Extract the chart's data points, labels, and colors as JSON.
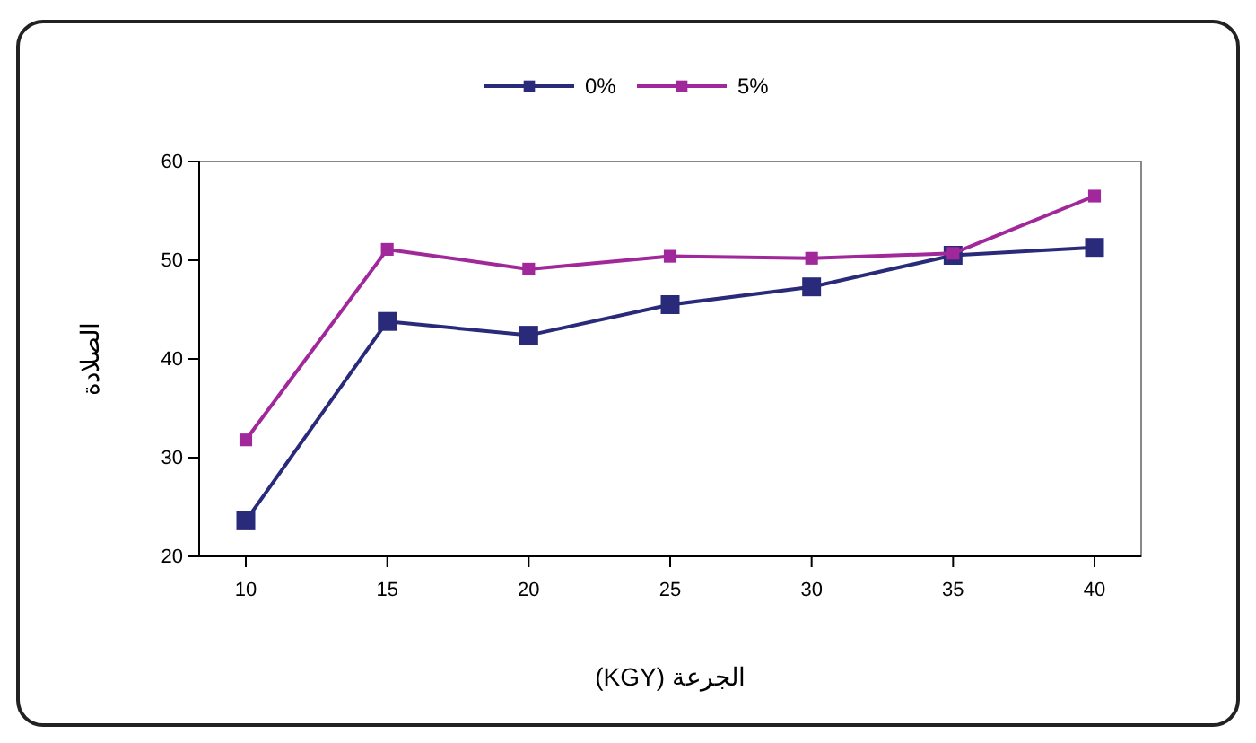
{
  "chart_data": {
    "type": "line",
    "xlabel": "(KGY) الجرعة",
    "ylabel": "الصلادة",
    "categories": [
      "10",
      "15",
      "20",
      "25",
      "30",
      "35",
      "40"
    ],
    "series": [
      {
        "name": "0%",
        "color": "#2a2a7a",
        "values": [
          23.6,
          43.8,
          42.4,
          45.5,
          47.3,
          50.5,
          51.3
        ]
      },
      {
        "name": "5%",
        "color": "#a0289a",
        "values": [
          31.8,
          51.1,
          49.1,
          50.4,
          50.2,
          50.7,
          56.5
        ]
      }
    ],
    "ylim": [
      20,
      60
    ],
    "yticks": [
      20,
      30,
      40,
      50,
      60
    ],
    "grid": false,
    "legend": "top",
    "marker": "square",
    "line_style": "solid"
  }
}
